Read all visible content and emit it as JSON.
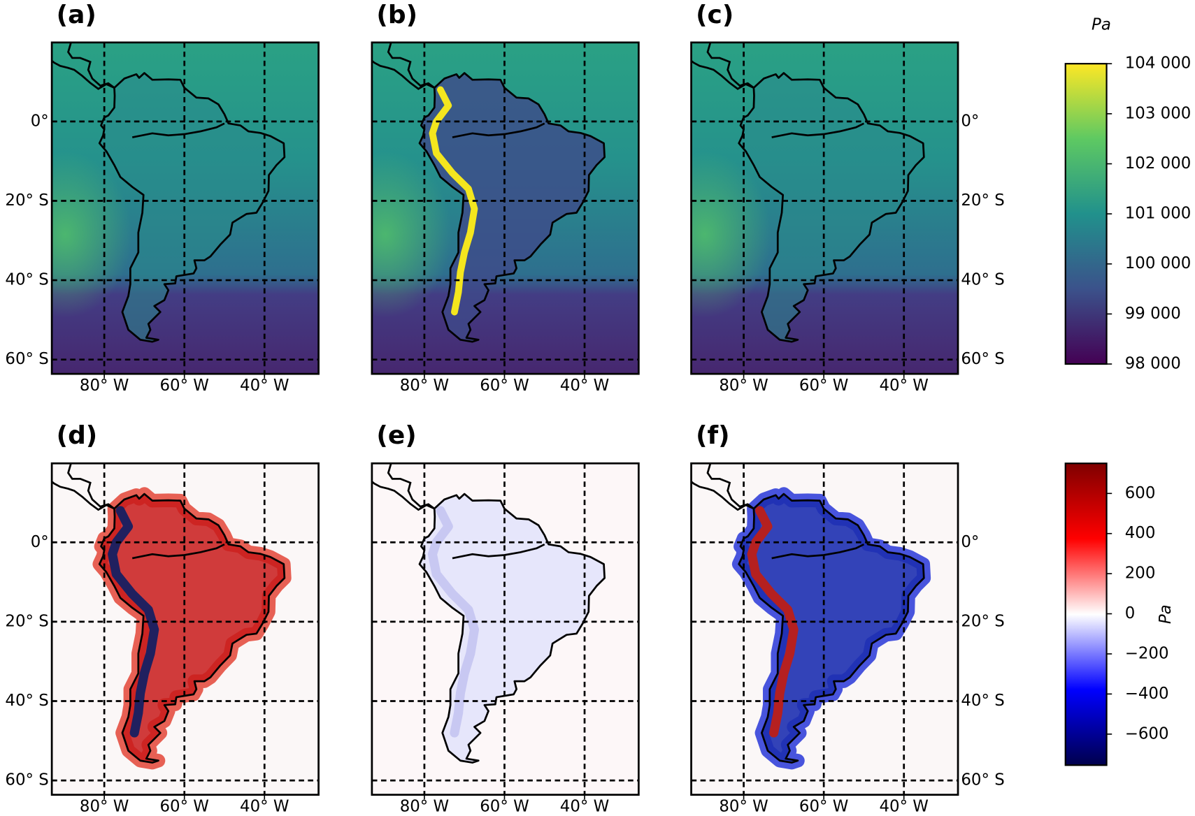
{
  "panels": [
    {
      "label": "(a)"
    },
    {
      "label": "(b)"
    },
    {
      "label": "(c)"
    },
    {
      "label": "(d)"
    },
    {
      "label": "(e)"
    },
    {
      "label": "(f)"
    }
  ],
  "map": {
    "xlim": [
      -93.1,
      -26.5
    ],
    "ylim": [
      -63.6,
      19.9
    ],
    "xticks": [
      {
        "value": -80,
        "label": "80° W"
      },
      {
        "value": -60,
        "label": "60° W"
      },
      {
        "value": -40,
        "label": "40° W"
      }
    ],
    "yticks": [
      {
        "value": 0,
        "label": "0°"
      },
      {
        "value": -20,
        "label": "20° S"
      },
      {
        "value": -40,
        "label": "40° S"
      },
      {
        "value": -60,
        "label": "60° S"
      }
    ]
  },
  "colorbars": [
    {
      "title": "Pa",
      "ylim": [
        98000,
        104000
      ],
      "yticks": [
        {
          "value": 98000,
          "label": "98 000"
        },
        {
          "value": 99000,
          "label": "99 000"
        },
        {
          "value": 100000,
          "label": "100 000"
        },
        {
          "value": 101000,
          "label": "101 000"
        },
        {
          "value": 102000,
          "label": "102 000"
        },
        {
          "value": 103000,
          "label": "103 000"
        },
        {
          "value": 104000,
          "label": "104 000"
        }
      ]
    },
    {
      "label": "Pa",
      "ylim": [
        -755,
        750
      ],
      "yticks": [
        {
          "value": -600,
          "label": "−600"
        },
        {
          "value": -400,
          "label": "−400"
        },
        {
          "value": -200,
          "label": "−200"
        },
        0,
        200,
        400,
        600
      ]
    }
  ]
}
